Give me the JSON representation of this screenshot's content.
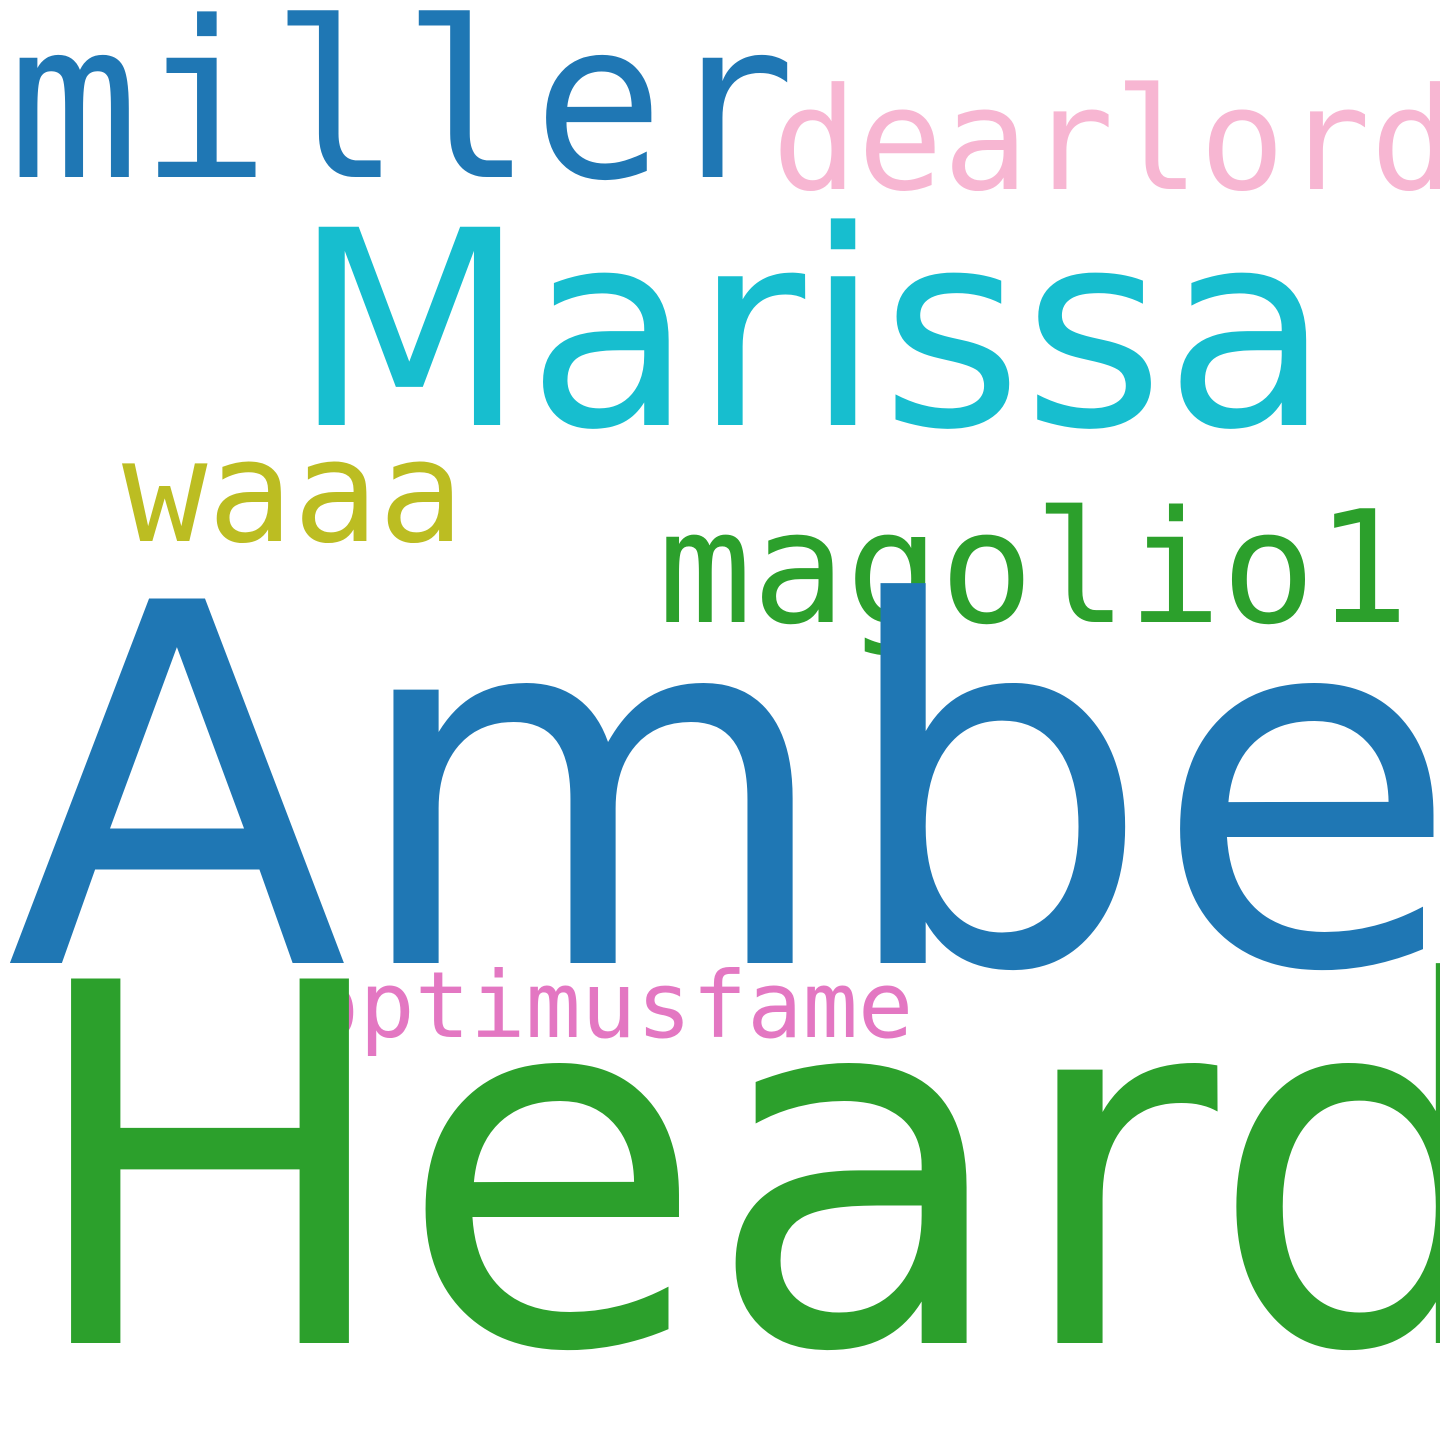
{
  "words": [
    {
      "text": "miller",
      "color": "#1f77b4"
    },
    {
      "text": "dearlord",
      "color": "#f7b6d2"
    },
    {
      "text": "Marissa",
      "color": "#17becf"
    },
    {
      "text": "waaa",
      "color": "#bcbd22"
    },
    {
      "text": "magolio1",
      "color": "#2ca02c"
    },
    {
      "text": "Amber",
      "color": "#1f77b4"
    },
    {
      "text": "optimusfame",
      "color": "#e377c2"
    },
    {
      "text": "Heard",
      "color": "#2ca02c"
    }
  ]
}
